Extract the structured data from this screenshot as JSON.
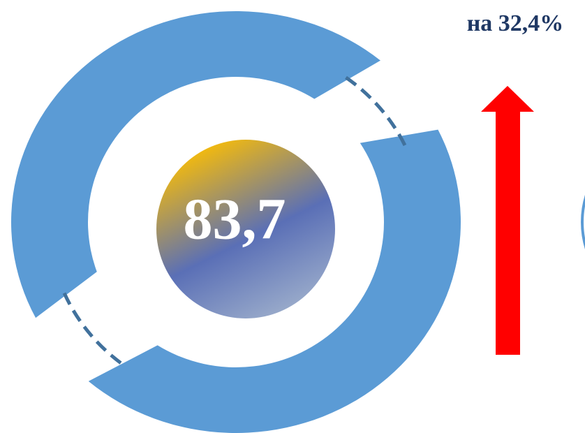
{
  "change_label": "на 32,4%",
  "center_value": "83,7"
}
